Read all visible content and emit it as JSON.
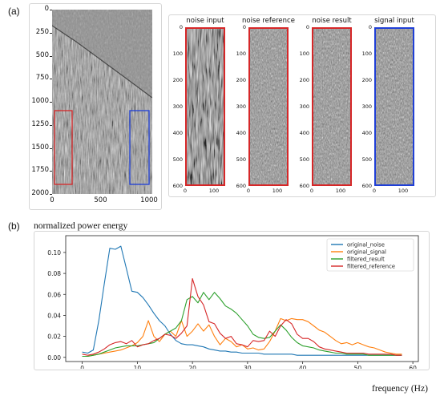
{
  "panel_labels": {
    "a": "(a)",
    "b": "(b)"
  },
  "big_panel": {
    "y_ticks": [
      "0",
      "250",
      "500",
      "750",
      "1000",
      "1250",
      "1500",
      "1750",
      "2000"
    ],
    "x_ticks": [
      "0",
      "500",
      "1000"
    ]
  },
  "small_panels": [
    {
      "title": "noise input",
      "box_color": "#d62728",
      "variant": "strong"
    },
    {
      "title": "noise reference",
      "box_color": "#d62728",
      "variant": "weak"
    },
    {
      "title": "noise result",
      "box_color": "#d62728",
      "variant": "weak"
    },
    {
      "title": "signal input",
      "box_color": "#1f3fd6",
      "variant": "weak"
    }
  ],
  "small_panel_axes": {
    "y_ticks": [
      "0",
      "100",
      "200",
      "300",
      "400",
      "500",
      "600"
    ],
    "x_ticks": [
      "0",
      "100"
    ]
  },
  "colors": {
    "original_noise": "#1f77b4",
    "original_signal": "#ff7f0e",
    "filtered_result": "#2ca02c",
    "filtered_reference": "#d62728",
    "red_box": "#d62728",
    "blue_box": "#1f3fd6"
  },
  "chart_data": {
    "type": "line",
    "ylabel": "normalized power energy",
    "xlabel": "frequency (Hz)",
    "xlim": [
      -3,
      61
    ],
    "ylim": [
      -0.004,
      0.116
    ],
    "x_ticks": [
      0,
      10,
      20,
      30,
      40,
      50,
      60
    ],
    "y_ticks": [
      0.0,
      0.02,
      0.04,
      0.06,
      0.08,
      0.1
    ],
    "y_tick_labels": [
      "0.00",
      "0.02",
      "0.04",
      "0.06",
      "0.08",
      "0.10"
    ],
    "legend_position": "top-right",
    "series": [
      {
        "name": "original_noise",
        "x": [
          0,
          1,
          2,
          3,
          4,
          5,
          6,
          7,
          8,
          9,
          10,
          11,
          12,
          13,
          14,
          15,
          16,
          17,
          18,
          19,
          20,
          21,
          22,
          23,
          24,
          25,
          26,
          27,
          28,
          29,
          30,
          31,
          32,
          33,
          34,
          35,
          36,
          37,
          38,
          39,
          40,
          41,
          42,
          43,
          44,
          45,
          46,
          47,
          48,
          49,
          50,
          51,
          52,
          53,
          54,
          55,
          56,
          57,
          58
        ],
        "y": [
          0.005,
          0.004,
          0.007,
          0.035,
          0.07,
          0.104,
          0.103,
          0.106,
          0.085,
          0.063,
          0.062,
          0.057,
          0.05,
          0.042,
          0.035,
          0.03,
          0.022,
          0.016,
          0.013,
          0.012,
          0.012,
          0.011,
          0.01,
          0.008,
          0.007,
          0.006,
          0.006,
          0.005,
          0.005,
          0.004,
          0.004,
          0.004,
          0.004,
          0.003,
          0.003,
          0.003,
          0.003,
          0.003,
          0.003,
          0.002,
          0.002,
          0.002,
          0.002,
          0.002,
          0.002,
          0.002,
          0.002,
          0.002,
          0.002,
          0.002,
          0.002,
          0.002,
          0.002,
          0.002,
          0.002,
          0.002,
          0.002,
          0.002,
          0.002
        ]
      },
      {
        "name": "original_signal",
        "x": [
          0,
          1,
          2,
          3,
          4,
          5,
          6,
          7,
          8,
          9,
          10,
          11,
          12,
          13,
          14,
          15,
          16,
          17,
          18,
          19,
          20,
          21,
          22,
          23,
          24,
          25,
          26,
          27,
          28,
          29,
          30,
          31,
          32,
          33,
          34,
          35,
          36,
          37,
          38,
          39,
          40,
          41,
          42,
          43,
          44,
          45,
          46,
          47,
          48,
          49,
          50,
          51,
          52,
          53,
          54,
          55,
          56,
          57,
          58
        ],
        "y": [
          0.001,
          0.001,
          0.002,
          0.003,
          0.004,
          0.005,
          0.006,
          0.007,
          0.009,
          0.011,
          0.014,
          0.02,
          0.035,
          0.02,
          0.015,
          0.022,
          0.025,
          0.02,
          0.035,
          0.02,
          0.025,
          0.032,
          0.025,
          0.031,
          0.02,
          0.012,
          0.018,
          0.015,
          0.01,
          0.012,
          0.008,
          0.009,
          0.007,
          0.008,
          0.015,
          0.025,
          0.037,
          0.035,
          0.037,
          0.036,
          0.036,
          0.034,
          0.03,
          0.026,
          0.024,
          0.02,
          0.016,
          0.013,
          0.014,
          0.012,
          0.014,
          0.012,
          0.01,
          0.009,
          0.007,
          0.005,
          0.004,
          0.003,
          0.003
        ]
      },
      {
        "name": "filtered_result",
        "x": [
          0,
          1,
          2,
          3,
          4,
          5,
          6,
          7,
          8,
          9,
          10,
          11,
          12,
          13,
          14,
          15,
          16,
          17,
          18,
          19,
          20,
          21,
          22,
          23,
          24,
          25,
          26,
          27,
          28,
          29,
          30,
          31,
          32,
          33,
          34,
          35,
          36,
          37,
          38,
          39,
          40,
          41,
          42,
          43,
          44,
          45,
          46,
          47,
          48,
          49,
          50,
          51,
          52,
          53,
          54,
          55,
          56,
          57,
          58
        ],
        "y": [
          0.001,
          0.001,
          0.002,
          0.003,
          0.005,
          0.007,
          0.009,
          0.01,
          0.011,
          0.011,
          0.011,
          0.012,
          0.013,
          0.014,
          0.018,
          0.022,
          0.025,
          0.028,
          0.035,
          0.055,
          0.058,
          0.052,
          0.062,
          0.055,
          0.062,
          0.056,
          0.049,
          0.046,
          0.042,
          0.036,
          0.03,
          0.022,
          0.019,
          0.018,
          0.019,
          0.025,
          0.031,
          0.026,
          0.019,
          0.014,
          0.011,
          0.01,
          0.009,
          0.007,
          0.006,
          0.005,
          0.004,
          0.004,
          0.003,
          0.003,
          0.003,
          0.003,
          0.002,
          0.002,
          0.002,
          0.002,
          0.002,
          0.002,
          0.002
        ]
      },
      {
        "name": "filtered_reference",
        "x": [
          0,
          1,
          2,
          3,
          4,
          5,
          6,
          7,
          8,
          9,
          10,
          11,
          12,
          13,
          14,
          15,
          16,
          17,
          18,
          19,
          20,
          21,
          22,
          23,
          24,
          25,
          26,
          27,
          28,
          29,
          30,
          31,
          32,
          33,
          34,
          35,
          36,
          37,
          38,
          39,
          40,
          41,
          42,
          43,
          44,
          45,
          46,
          47,
          48,
          49,
          50,
          51,
          52,
          53,
          54,
          55,
          56,
          57,
          58
        ],
        "y": [
          0.003,
          0.002,
          0.003,
          0.005,
          0.008,
          0.012,
          0.014,
          0.015,
          0.013,
          0.016,
          0.01,
          0.012,
          0.013,
          0.016,
          0.018,
          0.022,
          0.021,
          0.018,
          0.023,
          0.03,
          0.075,
          0.058,
          0.05,
          0.034,
          0.032,
          0.023,
          0.018,
          0.02,
          0.013,
          0.012,
          0.01,
          0.016,
          0.015,
          0.016,
          0.025,
          0.02,
          0.03,
          0.036,
          0.032,
          0.022,
          0.018,
          0.018,
          0.015,
          0.01,
          0.008,
          0.007,
          0.006,
          0.005,
          0.004,
          0.004,
          0.004,
          0.004,
          0.003,
          0.003,
          0.003,
          0.003,
          0.003,
          0.002,
          0.002
        ]
      }
    ]
  }
}
